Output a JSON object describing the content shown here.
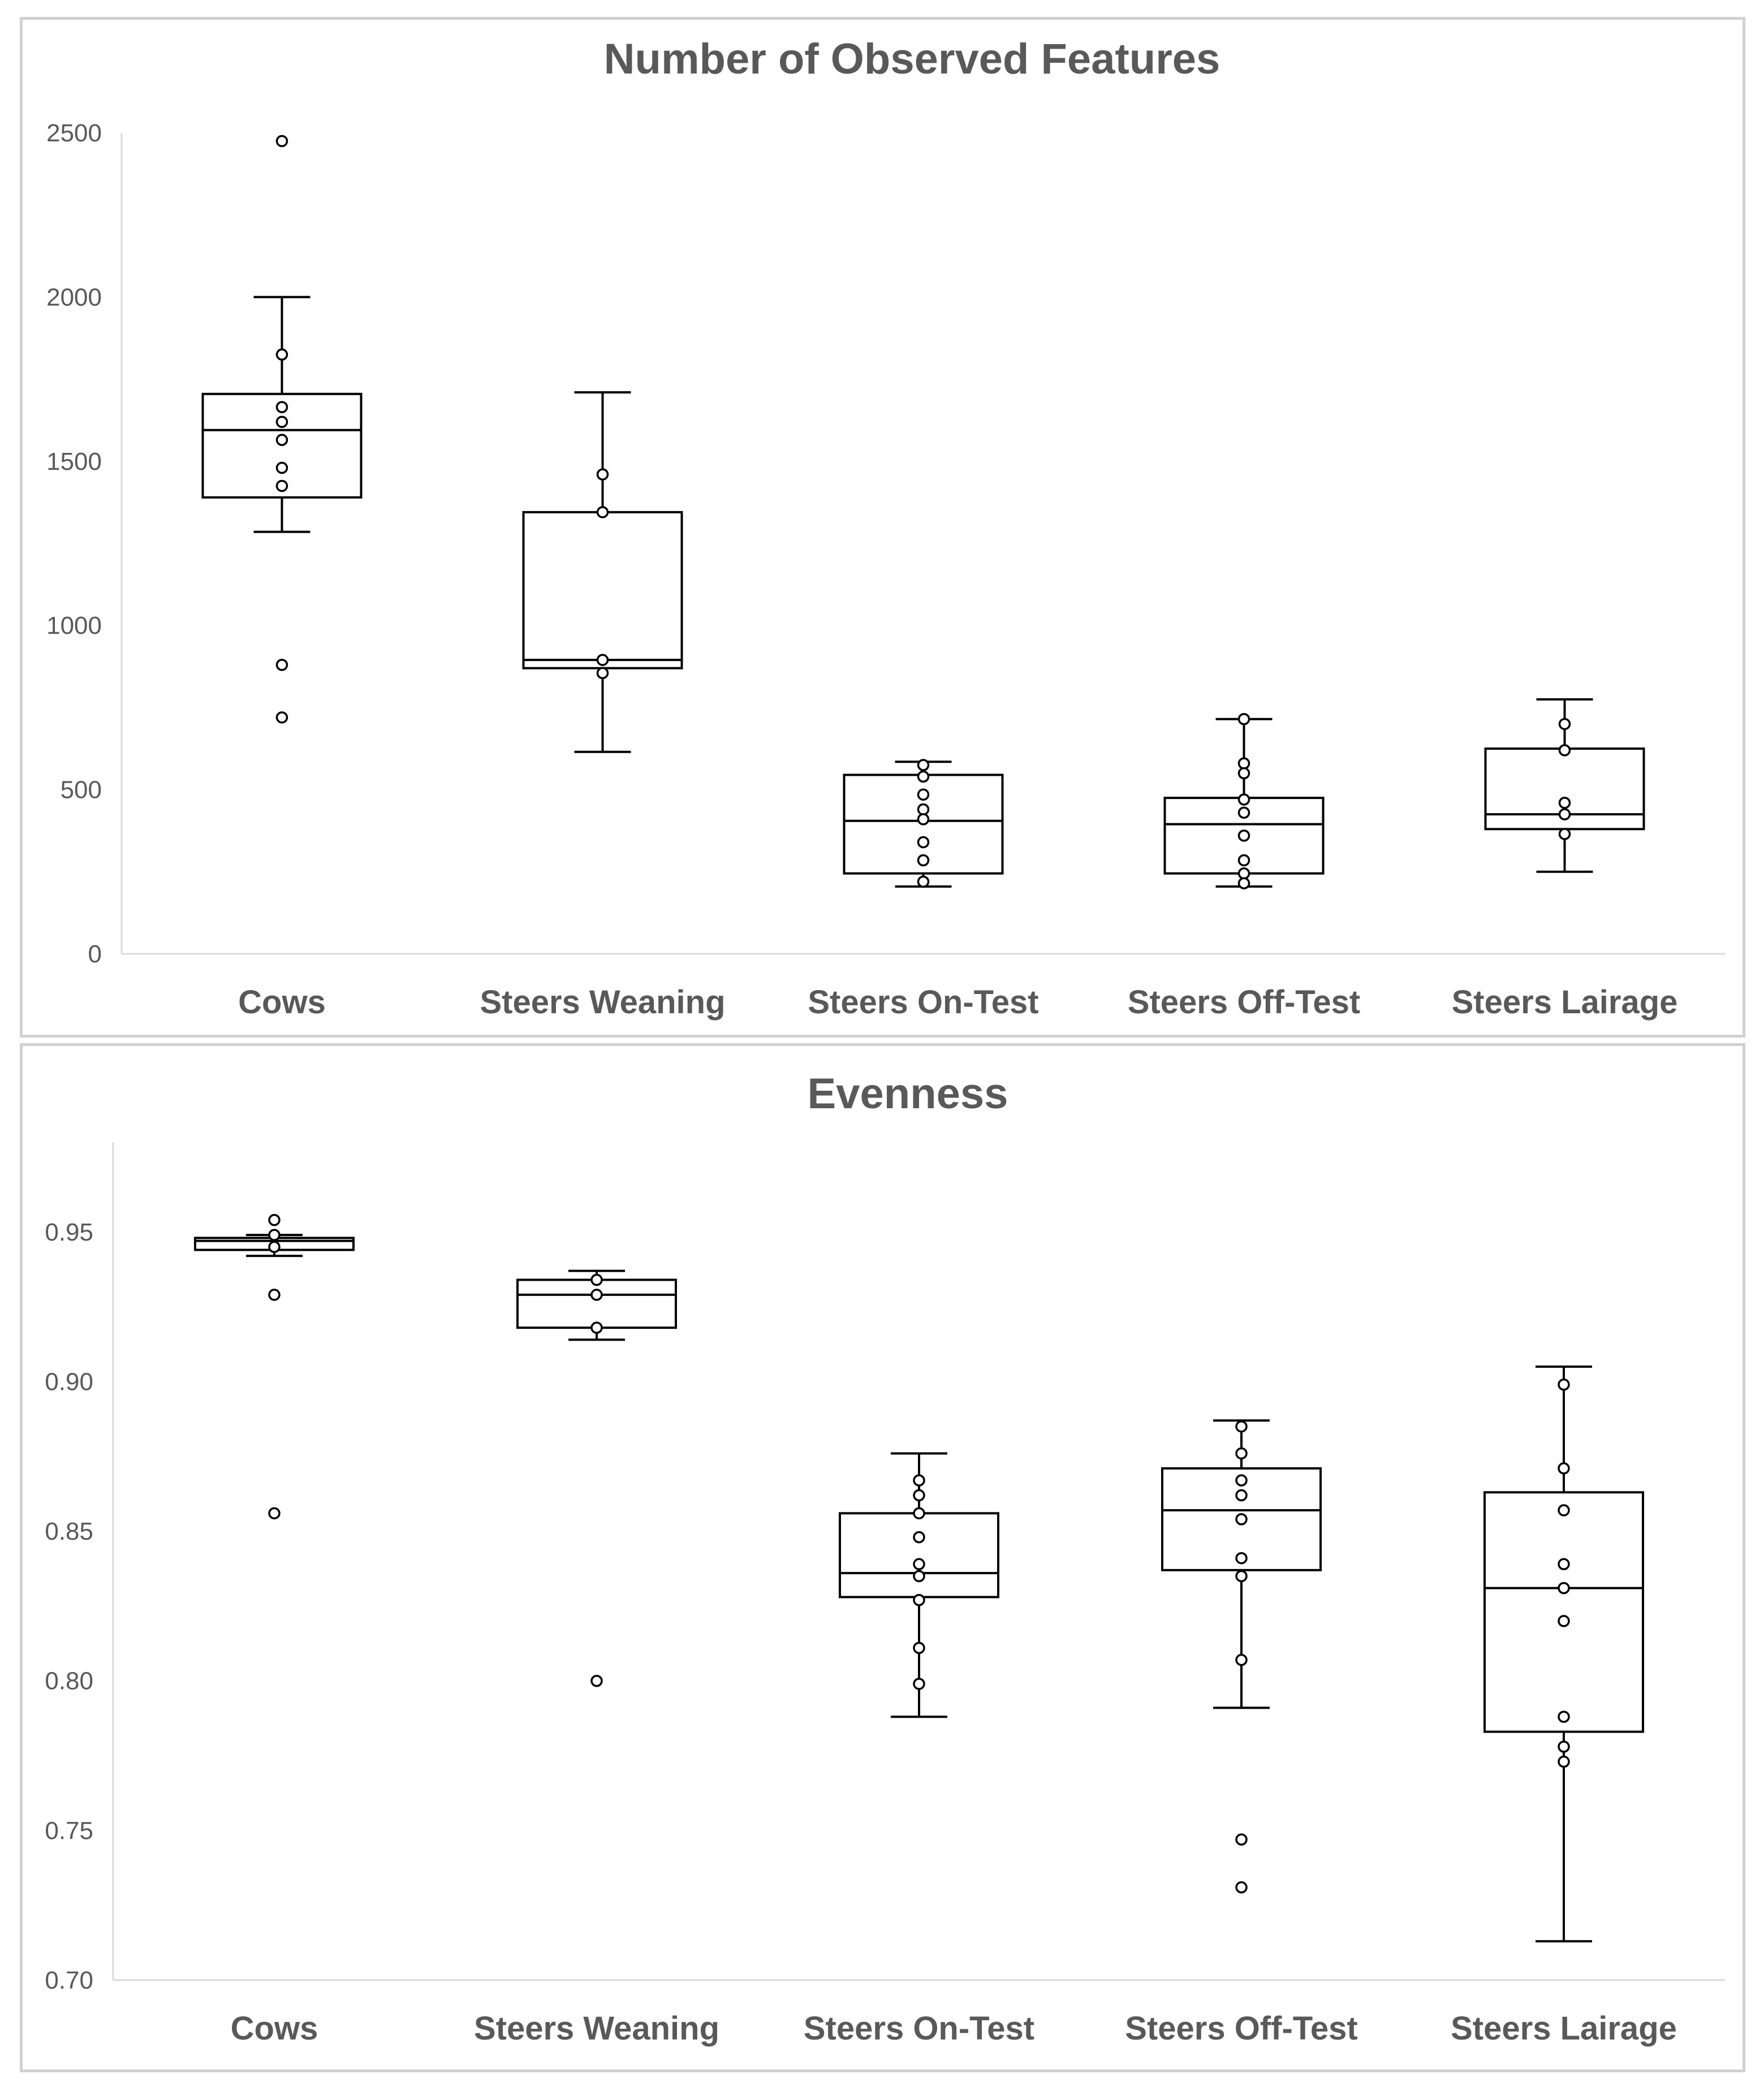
{
  "chart_data": [
    {
      "type": "box",
      "title": "Number of Observed Features",
      "xlabel": "",
      "ylabel": "",
      "ylim": [
        0,
        2500
      ],
      "yticks": [
        "0",
        "500",
        "1000",
        "1500",
        "2000",
        "2500"
      ],
      "ytick_values": [
        0,
        500,
        1000,
        1500,
        2000,
        2500
      ],
      "grid": false,
      "categories": [
        "Cows",
        "Steers Weaning",
        "Steers On-Test",
        "Steers Off-Test",
        "Steers Lairage"
      ],
      "boxes": [
        {
          "category": "Cows",
          "whisker_low": 1285,
          "q1": 1390,
          "median": 1595,
          "q3": 1705,
          "whisker_high": 2000,
          "points": [
            2475,
            1825,
            1665,
            1620,
            1565,
            1480,
            1425,
            880,
            720
          ]
        },
        {
          "category": "Steers Weaning",
          "whisker_low": 615,
          "q1": 870,
          "median": 895,
          "q3": 1345,
          "whisker_high": 1710,
          "points": [
            1460,
            1345,
            895,
            855
          ]
        },
        {
          "category": "Steers On-Test",
          "whisker_low": 205,
          "q1": 245,
          "median": 405,
          "q3": 545,
          "whisker_high": 585,
          "points": [
            575,
            540,
            485,
            440,
            410,
            340,
            285,
            220
          ]
        },
        {
          "category": "Steers Off-Test",
          "whisker_low": 205,
          "q1": 245,
          "median": 395,
          "q3": 475,
          "whisker_high": 715,
          "points": [
            715,
            580,
            550,
            470,
            430,
            360,
            285,
            245,
            215
          ]
        },
        {
          "category": "Steers Lairage",
          "whisker_low": 250,
          "q1": 380,
          "median": 425,
          "q3": 625,
          "whisker_high": 775,
          "points": [
            700,
            620,
            460,
            425,
            365
          ]
        }
      ]
    },
    {
      "type": "box",
      "title": "Evenness",
      "xlabel": "",
      "ylabel": "",
      "ylim": [
        0.7,
        0.98
      ],
      "yticks": [
        "0.70",
        "0.75",
        "0.80",
        "0.85",
        "0.90",
        "0.95"
      ],
      "ytick_values": [
        0.7,
        0.75,
        0.8,
        0.85,
        0.9,
        0.95
      ],
      "grid": false,
      "categories": [
        "Cows",
        "Steers Weaning",
        "Steers On-Test",
        "Steers Off-Test",
        "Steers Lairage"
      ],
      "boxes": [
        {
          "category": "Cows",
          "whisker_low": 0.942,
          "q1": 0.944,
          "median": 0.947,
          "q3": 0.948,
          "whisker_high": 0.949,
          "points": [
            0.954,
            0.949,
            0.945,
            0.929,
            0.856
          ]
        },
        {
          "category": "Steers Weaning",
          "whisker_low": 0.914,
          "q1": 0.918,
          "median": 0.929,
          "q3": 0.934,
          "whisker_high": 0.937,
          "points": [
            0.934,
            0.929,
            0.918,
            0.8
          ]
        },
        {
          "category": "Steers On-Test",
          "whisker_low": 0.788,
          "q1": 0.828,
          "median": 0.836,
          "q3": 0.856,
          "whisker_high": 0.876,
          "points": [
            0.867,
            0.862,
            0.856,
            0.848,
            0.839,
            0.835,
            0.827,
            0.811,
            0.799
          ]
        },
        {
          "category": "Steers Off-Test",
          "whisker_low": 0.791,
          "q1": 0.837,
          "median": 0.857,
          "q3": 0.871,
          "whisker_high": 0.887,
          "points": [
            0.885,
            0.876,
            0.867,
            0.862,
            0.854,
            0.841,
            0.835,
            0.807,
            0.747,
            0.731
          ]
        },
        {
          "category": "Steers Lairage",
          "whisker_low": 0.713,
          "q1": 0.783,
          "median": 0.831,
          "q3": 0.863,
          "whisker_high": 0.905,
          "points": [
            0.899,
            0.871,
            0.857,
            0.839,
            0.831,
            0.82,
            0.788,
            0.778,
            0.773
          ]
        }
      ]
    }
  ]
}
